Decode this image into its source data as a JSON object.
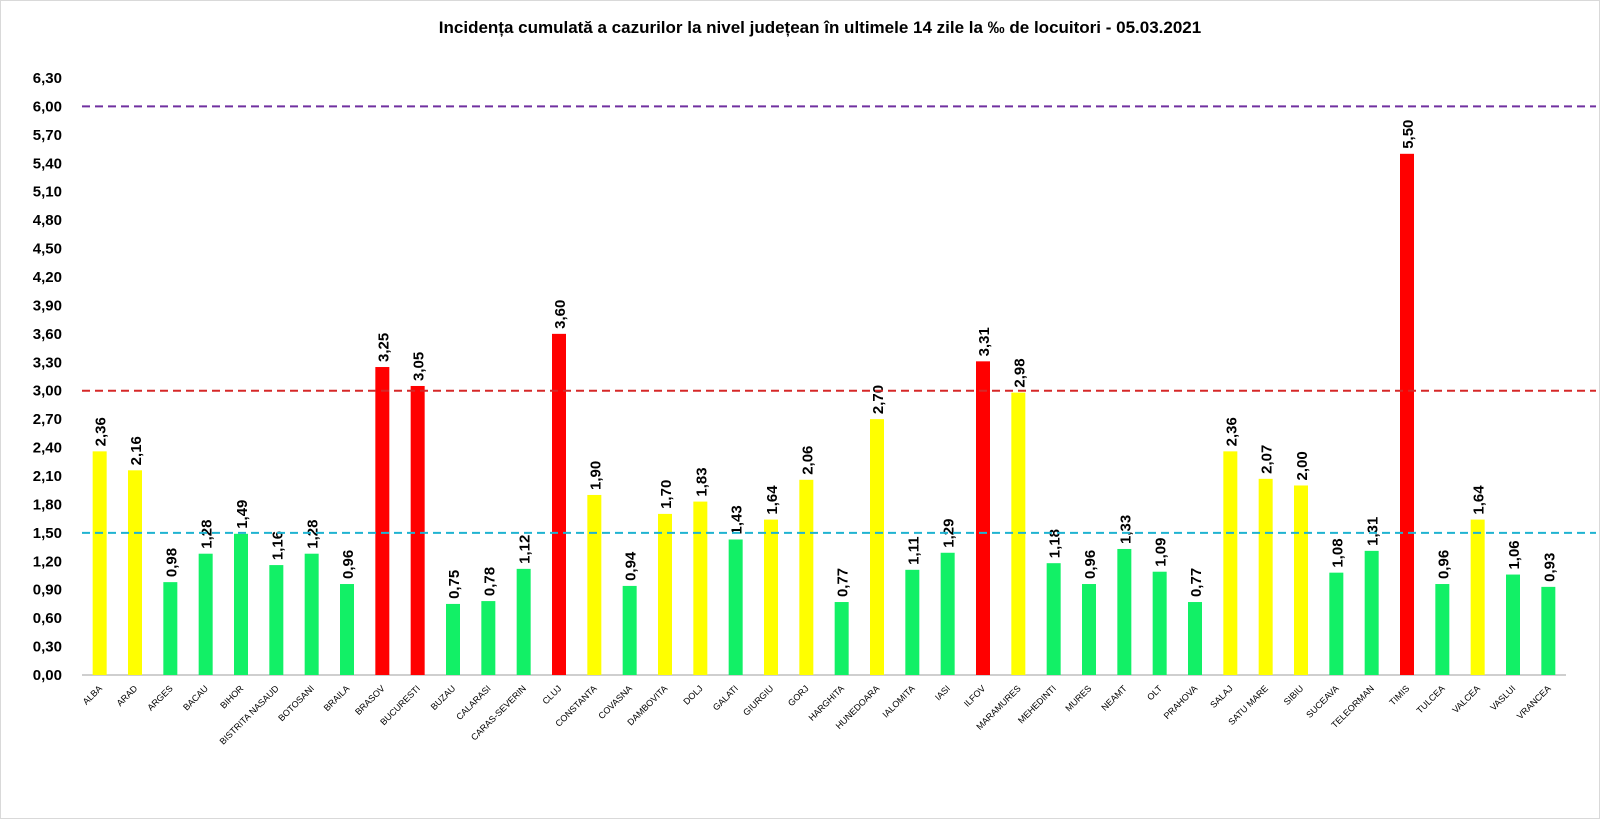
{
  "chart_data": {
    "type": "bar",
    "title": "Incidența cumulată a cazurilor la nivel județean în ultimele 14 zile la ‰ de locuitori - 05.03.2021",
    "xlabel": "",
    "ylabel": "",
    "ylim": [
      0,
      6.3
    ],
    "ytick_step": 0.3,
    "grid": false,
    "legend": "none",
    "categories": [
      "ALBA",
      "ARAD",
      "ARGES",
      "BACAU",
      "BIHOR",
      "BISTRITA NASAUD",
      "BOTOSANI",
      "BRAILA",
      "BRASOV",
      "BUCURESTI",
      "BUZAU",
      "CALARASI",
      "CARAS-SEVERIN",
      "CLUJ",
      "CONSTANTA",
      "COVASNA",
      "DAMBOVITA",
      "DOLJ",
      "GALATI",
      "GIURGIU",
      "GORJ",
      "HARGHITA",
      "HUNEDOARA",
      "IALOMITA",
      "IASI",
      "ILFOV",
      "MARAMURES",
      "MEHEDINTI",
      "MURES",
      "NEAMT",
      "OLT",
      "PRAHOVA",
      "SALAJ",
      "SATU MARE",
      "SIBIU",
      "SUCEAVA",
      "TELEORMAN",
      "TIMIS",
      "TULCEA",
      "VALCEA",
      "VASLUI",
      "VRANCEA"
    ],
    "values": [
      2.36,
      2.16,
      0.98,
      1.28,
      1.49,
      1.16,
      1.28,
      0.96,
      3.25,
      3.05,
      0.75,
      0.78,
      1.12,
      3.6,
      1.9,
      0.94,
      1.7,
      1.83,
      1.43,
      1.64,
      2.06,
      0.77,
      2.7,
      1.11,
      1.29,
      3.31,
      2.98,
      1.18,
      0.96,
      1.33,
      1.09,
      0.77,
      2.36,
      2.07,
      2.0,
      1.08,
      1.31,
      5.5,
      0.96,
      1.64,
      1.06,
      0.93
    ],
    "thresholds": [
      {
        "value": 1.5,
        "color": "#1fb3d1"
      },
      {
        "value": 3.0,
        "color": "#d62828"
      },
      {
        "value": 6.0,
        "color": "#7030a0"
      }
    ],
    "bar_colors": {
      "low": "#12f066",
      "medium": "#ffff00",
      "high": "#ff0000"
    },
    "decimal_separator": ","
  }
}
